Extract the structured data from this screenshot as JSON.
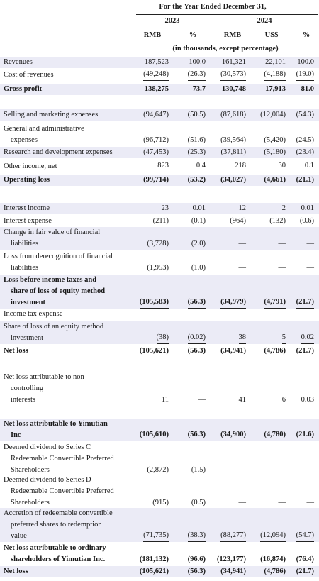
{
  "header": {
    "period": "For the Year Ended December 31,",
    "years": [
      "2023",
      "2024"
    ],
    "units": [
      "RMB",
      "%",
      "RMB",
      "US$",
      "%"
    ],
    "note": "(in thousands, except percentage)"
  },
  "table": {
    "rows": [
      {
        "label": [
          "Revenues"
        ],
        "cells": [
          "187,523",
          "100.0",
          "161,321",
          "22,101",
          "100.0"
        ]
      },
      {
        "label": [
          "Cost of revenues"
        ],
        "cells": [
          "(49,248)",
          "(26.3)",
          "(30,573)",
          "(4,188)",
          "(19.0)"
        ]
      },
      {
        "label": [
          "Gross profit"
        ],
        "cells": [
          "138,275",
          "73.7",
          "130,748",
          "17,913",
          "81.0"
        ]
      },
      {
        "label": [
          "Selling and marketing expenses"
        ],
        "cells": [
          "(94,647)",
          "(50.5)",
          "(87,618)",
          "(12,004)",
          "(54.3)"
        ]
      },
      {
        "label": [
          "General and administrative",
          "expenses"
        ],
        "cells": [
          "(96,712)",
          "(51.6)",
          "(39,564)",
          "(5,420)",
          "(24.5)"
        ]
      },
      {
        "label": [
          "Research and development expenses"
        ],
        "cells": [
          "(47,453)",
          "(25.3)",
          "(37,811)",
          "(5,180)",
          "(23.4)"
        ]
      },
      {
        "label": [
          "Other income, net"
        ],
        "cells": [
          "823",
          "0.4",
          "218",
          "30",
          "0.1"
        ]
      },
      {
        "label": [
          "Operating loss"
        ],
        "cells": [
          "(99,714)",
          "(53.2)",
          "(34,027)",
          "(4,661)",
          "(21.1)"
        ]
      },
      {
        "label": [
          "Interest income"
        ],
        "cells": [
          "23",
          "0.01",
          "12",
          "2",
          "0.01"
        ]
      },
      {
        "label": [
          "Interest expense"
        ],
        "cells": [
          "(211)",
          "(0.1)",
          "(964)",
          "(132)",
          "(0.6)"
        ]
      },
      {
        "label": [
          "Change in fair value of financial",
          "liabilities"
        ],
        "cells": [
          "(3,728)",
          "(2.0)",
          "—",
          "—",
          "—"
        ]
      },
      {
        "label": [
          "Loss from derecognition of financial",
          "liabilities"
        ],
        "cells": [
          "(1,953)",
          "(1.0)",
          "—",
          "—",
          "—"
        ]
      },
      {
        "label": [
          "Loss before income taxes and",
          "share of loss of equity method",
          "investment"
        ],
        "cells": [
          "(105,583)",
          "(56.3)",
          "(34,979)",
          "(4,791)",
          "(21.7)"
        ]
      },
      {
        "label": [
          "Income tax expense"
        ],
        "cells": [
          "—",
          "—",
          "—",
          "—",
          "—"
        ]
      },
      {
        "label": [
          "Share of loss of an equity method",
          "investment"
        ],
        "cells": [
          "(38)",
          "(0.02)",
          "38",
          "5",
          "0.02"
        ]
      },
      {
        "label": [
          "Net loss"
        ],
        "cells": [
          "(105,621)",
          "(56.3)",
          "(34,941)",
          "(4,786)",
          "(21.7)"
        ]
      },
      {
        "label": [
          "Net loss attributable to non-",
          "controlling",
          "interests"
        ],
        "cells": [
          "11",
          "—",
          "41",
          "6",
          "0.03"
        ]
      },
      {
        "label": [
          "Net loss attributable to Yimutian",
          "Inc"
        ],
        "cells": [
          "(105,610)",
          "(56.3)",
          "(34,900)",
          "(4,780)",
          "(21.6)"
        ]
      },
      {
        "label": [
          "Deemed dividend to Series C",
          "Redeemable Convertible Preferred",
          "Shareholders"
        ],
        "cells": [
          "(2,872)",
          "(1.5)",
          "—",
          "—",
          "—"
        ]
      },
      {
        "label": [
          "Deemed dividend to Series D",
          "Redeemable Convertible Preferred",
          "Shareholders"
        ],
        "cells": [
          "(915)",
          "(0.5)",
          "—",
          "—",
          "—"
        ]
      },
      {
        "label": [
          "Accretion of redeemable convertible",
          "preferred shares to redemption",
          "value"
        ],
        "cells": [
          "(71,735)",
          "(38.3)",
          "(88,277)",
          "(12,094)",
          "(54.7)"
        ]
      },
      {
        "label": [
          "Net loss attributable to ordinary",
          "shareholders of Yimutian Inc."
        ],
        "cells": [
          "(181,132)",
          "(96.6)",
          "(123,177)",
          "(16,874)",
          "(76.4)"
        ]
      },
      {
        "label": [
          "Net loss"
        ],
        "cells": [
          "(105,621)",
          "(56.3)",
          "(34,941)",
          "(4,786)",
          "(21.7)"
        ]
      }
    ]
  }
}
